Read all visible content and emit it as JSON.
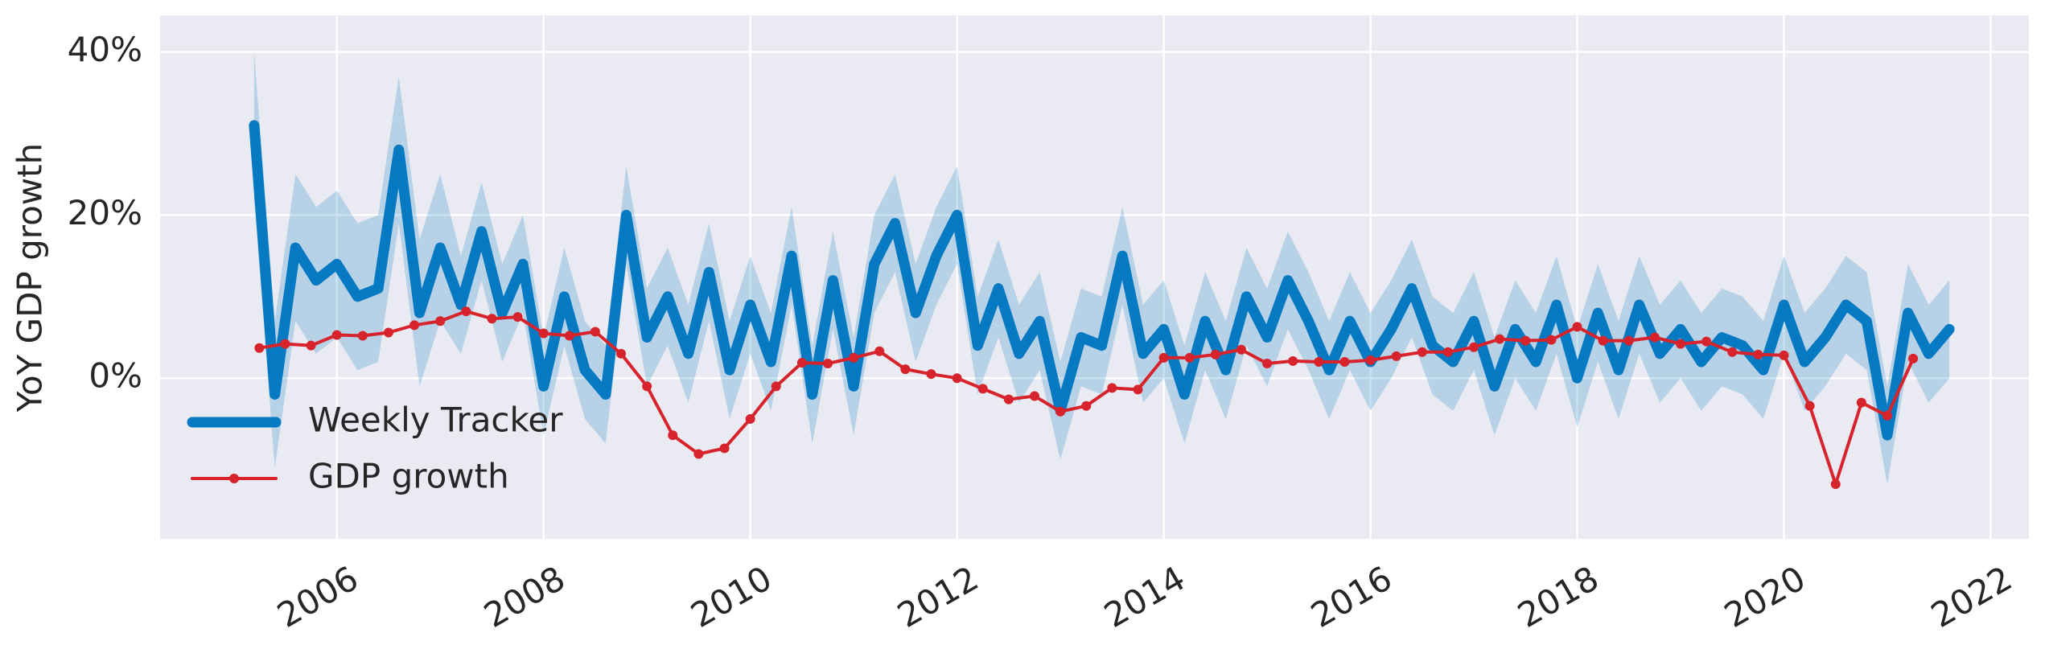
{
  "chart_data": {
    "type": "line",
    "ylabel": "YoY GDP growth",
    "xlim": [
      2004.29,
      2022.37
    ],
    "xticks": [
      2006,
      2008,
      2010,
      2012,
      2014,
      2016,
      2018,
      2020,
      2022
    ],
    "ylim": [
      -19.7,
      44.5
    ],
    "yticks": [
      {
        "value": 0,
        "label": "0%"
      },
      {
        "value": 20,
        "label": "20%"
      },
      {
        "value": 40,
        "label": "40%"
      }
    ],
    "grid": true,
    "legend": "lower left",
    "series": [
      {
        "name": "Weekly Tracker",
        "color": "#0579c1",
        "x": [
          2005.2,
          2005.4,
          2005.6,
          2005.8,
          2006.0,
          2006.2,
          2006.4,
          2006.6,
          2006.8,
          2007.0,
          2007.2,
          2007.4,
          2007.6,
          2007.8,
          2008.0,
          2008.2,
          2008.4,
          2008.6,
          2008.8,
          2009.0,
          2009.2,
          2009.4,
          2009.6,
          2009.8,
          2010.0,
          2010.2,
          2010.4,
          2010.6,
          2010.8,
          2011.0,
          2011.2,
          2011.4,
          2011.6,
          2011.8,
          2012.0,
          2012.2,
          2012.4,
          2012.6,
          2012.8,
          2013.0,
          2013.2,
          2013.4,
          2013.6,
          2013.8,
          2014.0,
          2014.2,
          2014.4,
          2014.6,
          2014.8,
          2015.0,
          2015.2,
          2015.4,
          2015.6,
          2015.8,
          2016.0,
          2016.2,
          2016.4,
          2016.6,
          2016.8,
          2017.0,
          2017.2,
          2017.4,
          2017.6,
          2017.8,
          2018.0,
          2018.2,
          2018.4,
          2018.6,
          2018.8,
          2019.0,
          2019.2,
          2019.4,
          2019.6,
          2019.8,
          2020.0,
          2020.2,
          2020.4,
          2020.6,
          2020.8,
          2021.0,
          2021.2,
          2021.4,
          2021.6
        ],
        "values": [
          31,
          -2,
          16,
          12,
          14,
          10,
          11,
          28,
          8,
          16,
          9,
          18,
          8,
          14,
          -1,
          10,
          1,
          -2,
          20,
          5,
          10,
          3,
          13,
          1,
          9,
          2,
          15,
          -2,
          12,
          -1,
          14,
          19,
          8,
          15,
          20,
          4,
          11,
          3,
          7,
          -4,
          5,
          4,
          15,
          3,
          6,
          -2,
          7,
          1,
          10,
          5,
          12,
          7,
          1,
          7,
          2,
          6,
          11,
          4,
          2,
          7,
          -1,
          6,
          2,
          9,
          0,
          8,
          1,
          9,
          3,
          6,
          2,
          5,
          4,
          1,
          9,
          2,
          5,
          9,
          7,
          -7,
          8,
          3,
          6
        ],
        "lower": [
          22,
          -11,
          7,
          3,
          5,
          1,
          2,
          19,
          -1,
          7,
          3,
          12,
          2,
          8,
          -7,
          4,
          -5,
          -8,
          14,
          -1,
          4,
          -3,
          7,
          -5,
          3,
          -4,
          9,
          -8,
          6,
          -7,
          8,
          13,
          2,
          9,
          14,
          -2,
          5,
          -3,
          1,
          -10,
          -1,
          -2,
          9,
          -3,
          0,
          -8,
          1,
          -5,
          4,
          -1,
          6,
          1,
          -5,
          1,
          -4,
          0,
          5,
          -2,
          -4,
          1,
          -7,
          0,
          -4,
          3,
          -6,
          2,
          -5,
          3,
          -3,
          0,
          -4,
          -1,
          -2,
          -5,
          3,
          -4,
          -1,
          3,
          1,
          -13,
          2,
          -3,
          0
        ],
        "upper": [
          40,
          7,
          25,
          21,
          23,
          19,
          20,
          37,
          17,
          25,
          15,
          24,
          14,
          20,
          5,
          16,
          7,
          4,
          26,
          11,
          16,
          9,
          19,
          7,
          15,
          8,
          21,
          4,
          18,
          5,
          20,
          25,
          14,
          21,
          26,
          10,
          17,
          9,
          13,
          2,
          11,
          10,
          21,
          9,
          12,
          4,
          13,
          7,
          16,
          11,
          18,
          13,
          7,
          13,
          8,
          12,
          17,
          10,
          8,
          13,
          5,
          12,
          8,
          15,
          6,
          14,
          7,
          15,
          9,
          12,
          8,
          11,
          10,
          7,
          15,
          8,
          11,
          15,
          13,
          -1,
          14,
          9,
          12
        ]
      },
      {
        "name": "GDP growth",
        "color": "#d7232b",
        "marker": true,
        "x": [
          2005.25,
          2005.5,
          2005.75,
          2006,
          2006.25,
          2006.5,
          2006.75,
          2007,
          2007.25,
          2007.5,
          2007.75,
          2008,
          2008.25,
          2008.5,
          2008.75,
          2009,
          2009.25,
          2009.5,
          2009.75,
          2010,
          2010.25,
          2010.5,
          2010.75,
          2011,
          2011.25,
          2011.5,
          2011.75,
          2012,
          2012.25,
          2012.5,
          2012.75,
          2013,
          2013.25,
          2013.5,
          2013.75,
          2014,
          2014.25,
          2014.5,
          2014.75,
          2015,
          2015.25,
          2015.5,
          2015.75,
          2016,
          2016.25,
          2016.5,
          2016.75,
          2017,
          2017.25,
          2017.5,
          2017.75,
          2018,
          2018.25,
          2018.5,
          2018.75,
          2019,
          2019.25,
          2019.5,
          2019.75,
          2020,
          2020.25,
          2020.5,
          2020.75,
          2021,
          2021.25
        ],
        "values": [
          3.7,
          4.2,
          4,
          5.3,
          5.2,
          5.6,
          6.5,
          7,
          8.2,
          7.3,
          7.5,
          5.5,
          5.2,
          5.7,
          3,
          -1,
          -7,
          -9.3,
          -8.6,
          -5,
          -1,
          1.9,
          1.8,
          2.5,
          3.3,
          1.1,
          0.5,
          0,
          -1.3,
          -2.6,
          -2.2,
          -4.1,
          -3.4,
          -1.2,
          -1.4,
          2.5,
          2.5,
          2.9,
          3.5,
          1.8,
          2.1,
          2,
          2,
          2.2,
          2.7,
          3.2,
          3.2,
          3.8,
          4.8,
          4.6,
          4.7,
          6.3,
          4.6,
          4.6,
          5,
          4.2,
          4.5,
          3.2,
          2.9,
          2.8,
          -3.4,
          -13,
          -3,
          -4.6,
          2.4
        ]
      }
    ]
  }
}
